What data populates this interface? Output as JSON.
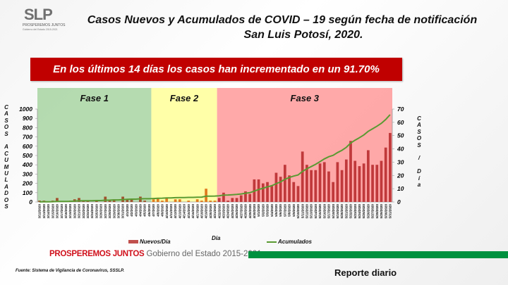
{
  "logo": {
    "text": "SLP",
    "tagline": "PROSPEREMOS JUNTOS",
    "subtag": "Gobierno del Estado 2015-2021"
  },
  "title_line1": "Casos Nuevos y Acumulados de COVID – 19 según fecha de notificación",
  "title_line2": "San Luis Potosí, 2020.",
  "banner": "En los últimos 14 días los casos han incrementado en un 91.70%",
  "chart_data": {
    "type": "bar+line",
    "xlabel": "Día",
    "ylabel_left": "CASOS ACUMULADOS",
    "ylabel_right": "CASOS / Día",
    "ylim_left": [
      0,
      1000
    ],
    "ylim_right": [
      0,
      70
    ],
    "yticks_left": [
      "0",
      "100",
      "200",
      "300",
      "400",
      "500",
      "600",
      "700",
      "800",
      "900",
      "1000"
    ],
    "yticks_right": [
      "0",
      "10",
      "20",
      "30",
      "40",
      "50",
      "60",
      "70"
    ],
    "grid": false,
    "legend_position": "bottom",
    "phases": [
      {
        "label": "Fase 1",
        "start": 0,
        "end": 25,
        "bg": "#a8d5a2",
        "bar": "#a0522d"
      },
      {
        "label": "Fase 2",
        "start": 26,
        "end": 40,
        "bg": "#ffff99",
        "bar": "#e07b20"
      },
      {
        "label": "Fase 3",
        "start": 41,
        "end": 80,
        "bg": "#ff9a9a",
        "bar": "#c0393b"
      }
    ],
    "categories": [
      "3/12/2020",
      "3/13/2020",
      "3/14/2020",
      "3/15/2020",
      "3/16/2020",
      "3/17/2020",
      "3/18/2020",
      "3/19/2020",
      "3/20/2020",
      "3/21/2020",
      "3/22/2020",
      "3/23/2020",
      "3/24/2020",
      "3/25/2020",
      "3/26/2020",
      "3/27/2020",
      "3/28/2020",
      "3/29/2020",
      "3/30/2020",
      "3/31/2020",
      "4/1/2020",
      "4/2/2020",
      "4/3/2020",
      "4/4/2020",
      "4/5/2020",
      "4/6/2020",
      "4/7/2020",
      "4/8/2020",
      "4/9/2020",
      "4/10/2020",
      "4/11/2020",
      "4/12/2020",
      "4/13/2020",
      "4/14/2020",
      "4/15/2020",
      "4/16/2020",
      "4/17/2020",
      "4/18/2020",
      "4/19/2020",
      "4/20/2020",
      "4/21/2020",
      "4/22/2020",
      "4/23/2020",
      "4/24/2020",
      "4/25/2020",
      "4/26/2020",
      "4/27/2020",
      "4/28/2020",
      "4/29/2020",
      "4/30/2020",
      "5/1/2020",
      "5/2/2020",
      "5/3/2020",
      "5/4/2020",
      "5/5/2020",
      "5/6/2020",
      "5/7/2020",
      "5/8/2020",
      "5/9/2020",
      "5/10/2020",
      "5/11/2020",
      "5/12/2020",
      "5/13/2020",
      "5/14/2020",
      "5/15/2020",
      "5/16/2020",
      "5/17/2020",
      "5/18/2020",
      "5/19/2020",
      "5/20/2020",
      "5/21/2020",
      "5/22/2020",
      "5/23/2020",
      "5/24/2020",
      "5/25/2020",
      "5/26/2020",
      "5/27/2020",
      "5/28/2020",
      "5/29/2020",
      "5/30/2020",
      "5/31/2020"
    ],
    "series": [
      {
        "name": "Nuevos/Día",
        "type": "bar",
        "axis": "right",
        "color": "#c0504d",
        "values": [
          1,
          1,
          0,
          1,
          3,
          0,
          0,
          1,
          2,
          3,
          1,
          1,
          0,
          1,
          0,
          4,
          1,
          2,
          0,
          4,
          2,
          2,
          0,
          4,
          1,
          0,
          2,
          3,
          1,
          3,
          0,
          2,
          2,
          0,
          1,
          0,
          2,
          1,
          10,
          1,
          1,
          3,
          7,
          1,
          3,
          3,
          5,
          8,
          6,
          17,
          17,
          14,
          15,
          12,
          22,
          19,
          28,
          20,
          15,
          12,
          38,
          28,
          24,
          24,
          29,
          30,
          23,
          15,
          30,
          24,
          32,
          46,
          31,
          27,
          29,
          39,
          28,
          28,
          31,
          41,
          52
        ]
      },
      {
        "name": "Acumulados",
        "type": "line",
        "axis": "left",
        "color": "#5a9a32",
        "values": [
          1,
          2,
          2,
          3,
          6,
          6,
          6,
          7,
          9,
          12,
          13,
          14,
          14,
          15,
          15,
          19,
          20,
          22,
          22,
          26,
          28,
          30,
          30,
          34,
          35,
          35,
          37,
          40,
          41,
          44,
          44,
          46,
          48,
          48,
          49,
          49,
          51,
          52,
          62,
          63,
          64,
          67,
          74,
          75,
          78,
          81,
          86,
          94,
          100,
          117,
          134,
          148,
          163,
          175,
          197,
          216,
          244,
          264,
          279,
          291,
          329,
          357,
          381,
          405,
          434,
          464,
          487,
          502,
          532,
          556,
          588,
          634,
          665,
          692,
          721,
          760,
          788,
          816,
          847,
          888,
          940
        ]
      }
    ]
  },
  "footer": {
    "brand_red": "PROSPEREMOS JUNTOS",
    "brand_gray": "Gobierno del Estado 2015-2021",
    "source": "Fuente: Sistema de Vigilancia de Coronavirus, SSSLP.",
    "report": "Reporte diario"
  }
}
